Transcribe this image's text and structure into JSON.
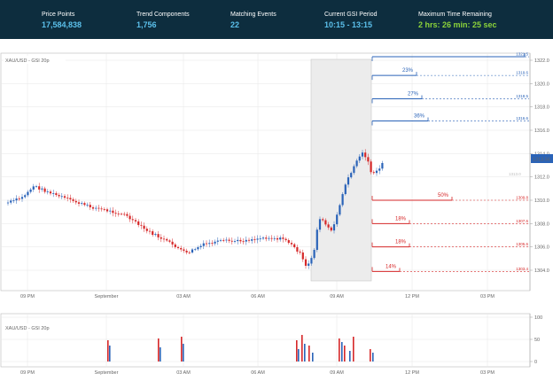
{
  "header": {
    "stats": [
      {
        "label": "Price Points",
        "value": "17,584,838",
        "color": "blue"
      },
      {
        "label": "Trend Components",
        "value": "1,756",
        "color": "blue"
      },
      {
        "label": "Matching Events",
        "value": "22",
        "color": "blue"
      },
      {
        "label": "Current GSI Period",
        "value": "10:15 - 13:15",
        "color": "blue"
      },
      {
        "label": "Maximum Time Remaining",
        "value": "2 hrs: 26 min: 25 sec",
        "color": "green"
      }
    ]
  },
  "main_chart": {
    "title": "XAU/USD - GSI 20p",
    "current_price": "1313.56",
    "ref_price_label": "1313.0",
    "y_ticks": [
      "1322.0",
      "1320.0",
      "1318.0",
      "1316.0",
      "1314.0",
      "1312.0",
      "1310.0",
      "1308.0",
      "1306.0",
      "1304.0"
    ],
    "x_ticks": [
      "09 PM",
      "September",
      "03 AM",
      "06 AM",
      "09 AM",
      "12 PM",
      "03 PM"
    ],
    "up_levels": [
      {
        "pct": "",
        "price_label": "1321.5",
        "price": 1322.3
      },
      {
        "pct": "23%",
        "price_label": "1319.6",
        "price": 1320.7
      },
      {
        "pct": "27%",
        "price_label": "1318.5",
        "price": 1318.7
      },
      {
        "pct": "36%",
        "price_label": "1316.6",
        "price": 1316.8
      }
    ],
    "down_levels": [
      {
        "pct": "50%",
        "price_label": "1309.8",
        "price": 1310.0
      },
      {
        "pct": "18%",
        "price_label": "1307.6",
        "price": 1308.0
      },
      {
        "pct": "18%",
        "price_label": "1305.6",
        "price": 1306.0
      },
      {
        "pct": "14%",
        "price_label": "1303.4",
        "price": 1303.9
      }
    ]
  },
  "sub_chart": {
    "title": "XAU/USD - GSI 20p",
    "y_ticks": [
      "100",
      "50",
      "0"
    ],
    "x_ticks": [
      "09 PM",
      "September",
      "03 AM",
      "06 AM",
      "09 AM",
      "12 PM",
      "03 PM"
    ]
  },
  "colors": {
    "header_bg": "#0d2d3e",
    "up": "#2a63b8",
    "down": "#d62728",
    "label_blue": "#5bc0eb",
    "label_green": "#8bd33a"
  }
}
